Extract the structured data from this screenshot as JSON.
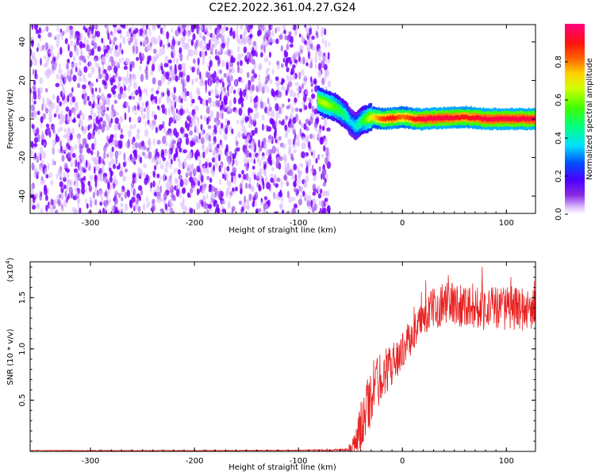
{
  "title": "C2E2.2022.361.04.27.G24",
  "chart_data": [
    {
      "type": "heatmap",
      "xlabel": "Height of straight line (km)",
      "ylabel": "Frequency (Hz)",
      "xlim": [
        -358,
        128
      ],
      "ylim": [
        -49,
        49
      ],
      "x_ticks": [
        -300,
        -200,
        -100,
        0,
        100
      ],
      "y_ticks": [
        -40,
        -20,
        0,
        20,
        40
      ],
      "x_tick_labels": [
        "-300",
        "-200",
        "-100",
        "0",
        "100"
      ],
      "y_tick_labels": [
        "-40",
        "-20",
        "0",
        "20",
        "40"
      ],
      "colorbar": {
        "label": "Normalized spectral amplitude",
        "range": [
          0,
          1
        ],
        "ticks": [
          0.0,
          0.2,
          0.4,
          0.6,
          0.8
        ],
        "tick_labels": [
          "0.0",
          "0.2",
          "0.4",
          "0.6",
          "0.8"
        ],
        "colormap": "rainbow (white-lavender → purple → blue → cyan → green → yellow → orange → red → magenta)"
      },
      "noise_region_x": [
        -358,
        -75
      ],
      "ridge": {
        "x": [
          -82,
          -75,
          -70,
          -65,
          -60,
          -55,
          -50,
          -45,
          -40,
          -35,
          -30,
          -20,
          -10,
          0,
          10,
          20,
          40,
          60,
          80,
          100,
          128
        ],
        "y": [
          10,
          8,
          7,
          6,
          4,
          2,
          -2,
          -4,
          -1,
          0,
          1,
          0,
          0.5,
          1,
          0,
          0,
          0.5,
          1,
          0,
          0,
          0
        ],
        "amplitude": [
          0.6,
          0.65,
          0.6,
          0.55,
          0.5,
          0.45,
          0.35,
          0.4,
          0.5,
          0.6,
          0.7,
          0.85,
          0.9,
          0.8,
          0.9,
          0.95,
          0.95,
          0.9,
          0.95,
          0.95,
          0.95
        ]
      },
      "grid": false
    },
    {
      "type": "line",
      "xlabel": "Height of straight line (km)",
      "ylabel": "SNR (10 * v/v)",
      "y_multiplier_label": "(x10",
      "y_multiplier_exp": "4",
      "y_multiplier_close": ")",
      "xlim": [
        -358,
        128
      ],
      "ylim": [
        0,
        18500
      ],
      "x_ticks": [
        -300,
        -200,
        -100,
        0,
        100
      ],
      "y_ticks": [
        5000,
        10000,
        15000
      ],
      "x_tick_labels": [
        "-300",
        "-200",
        "-100",
        "0",
        "100"
      ],
      "y_tick_labels": [
        "0.5",
        "1.0",
        "1.5"
      ],
      "series": [
        {
          "color": "#e82020",
          "x": [
            -358,
            -200,
            -100,
            -55,
            -45,
            -40,
            -35,
            -30,
            -25,
            -20,
            -10,
            0,
            10,
            20,
            30,
            40,
            60,
            80,
            100,
            128
          ],
          "mean": [
            80,
            80,
            100,
            150,
            800,
            2500,
            4000,
            5500,
            6500,
            7500,
            8500,
            9800,
            11500,
            13000,
            14000,
            14500,
            14300,
            14000,
            14000,
            13800
          ],
          "spread": [
            40,
            40,
            40,
            120,
            1200,
            2500,
            3000,
            3000,
            3000,
            2500,
            2000,
            1800,
            1800,
            1800,
            2000,
            2200,
            2200,
            2200,
            2200,
            2000
          ]
        }
      ],
      "grid": false
    }
  ]
}
